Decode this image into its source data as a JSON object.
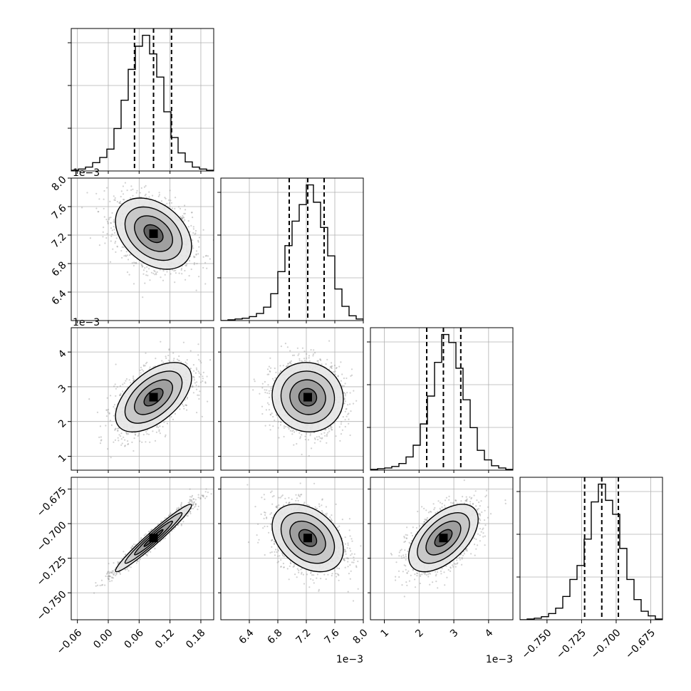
{
  "chart_data": {
    "type": "corner",
    "title": "",
    "grid": true,
    "parameters": [
      {
        "index": 0,
        "range": [
          -0.072,
          0.205
        ],
        "ticks": [
          -0.06,
          0.0,
          0.06,
          0.12,
          0.18
        ],
        "tick_labels": [
          "−0.06",
          "0.00",
          "0.06",
          "0.12",
          "0.18"
        ],
        "offset_text": "",
        "quantiles": [
          0.051,
          0.088,
          0.123
        ],
        "median": 0.088,
        "sigma": 0.037
      },
      {
        "index": 1,
        "range": [
          0.006,
          0.008
        ],
        "ticks": [
          0.0064,
          0.0068,
          0.0072,
          0.0076,
          0.008
        ],
        "tick_labels": [
          "6.4",
          "6.8",
          "7.2",
          "7.6",
          "8.0"
        ],
        "offset_text": "1e−3",
        "quantiles": [
          0.00696,
          0.00722,
          0.00745
        ],
        "median": 0.00722,
        "sigma": 0.00025
      },
      {
        "index": 2,
        "range": [
          0.0006,
          0.0047
        ],
        "ticks": [
          0.001,
          0.002,
          0.003,
          0.004
        ],
        "tick_labels": [
          "1",
          "2",
          "3",
          "4"
        ],
        "offset_text": "1e−3",
        "quantiles": [
          0.00222,
          0.0027,
          0.0032
        ],
        "median": 0.0027,
        "sigma": 0.0005
      },
      {
        "index": 3,
        "range": [
          -0.7695,
          -0.6665
        ],
        "ticks": [
          -0.75,
          -0.725,
          -0.7,
          -0.675
        ],
        "tick_labels": [
          "−0.750",
          "−0.725",
          "−0.700",
          "−0.675"
        ],
        "offset_text": "",
        "quantiles": [
          -0.7228,
          -0.7104,
          -0.6984
        ],
        "median": -0.7104,
        "sigma": 0.0122
      }
    ],
    "histograms": [
      {
        "param": 0,
        "bins": 20,
        "counts": [
          1,
          3,
          6,
          13,
          21,
          34,
          66,
          110,
          158,
          194,
          211,
          182,
          146,
          92,
          52,
          28,
          14,
          6,
          3,
          1
        ]
      },
      {
        "param": 1,
        "bins": 20,
        "counts": [
          0,
          1,
          2,
          3,
          5,
          9,
          17,
          34,
          62,
          95,
          126,
          147,
          172,
          150,
          118,
          82,
          40,
          18,
          6,
          2
        ]
      },
      {
        "param": 2,
        "bins": 20,
        "counts": [
          1,
          2,
          3,
          5,
          9,
          18,
          34,
          63,
          101,
          147,
          185,
          174,
          139,
          96,
          58,
          27,
          14,
          6,
          3,
          1
        ]
      },
      {
        "param": 3,
        "bins": 20,
        "counts": [
          0,
          1,
          2,
          4,
          8,
          15,
          30,
          52,
          70,
          104,
          152,
          175,
          154,
          136,
          92,
          52,
          26,
          11,
          5,
          1
        ]
      }
    ],
    "correlations": [
      {
        "x": 0,
        "y": 1,
        "rho": -0.35
      },
      {
        "x": 0,
        "y": 2,
        "rho": 0.55
      },
      {
        "x": 0,
        "y": 3,
        "rho": 0.97
      },
      {
        "x": 1,
        "y": 2,
        "rho": -0.05
      },
      {
        "x": 1,
        "y": 3,
        "rho": -0.35
      },
      {
        "x": 2,
        "y": 3,
        "rho": 0.55
      }
    ],
    "contour_levels_sigma": [
      0.5,
      1.0,
      1.5,
      2.0
    ]
  }
}
